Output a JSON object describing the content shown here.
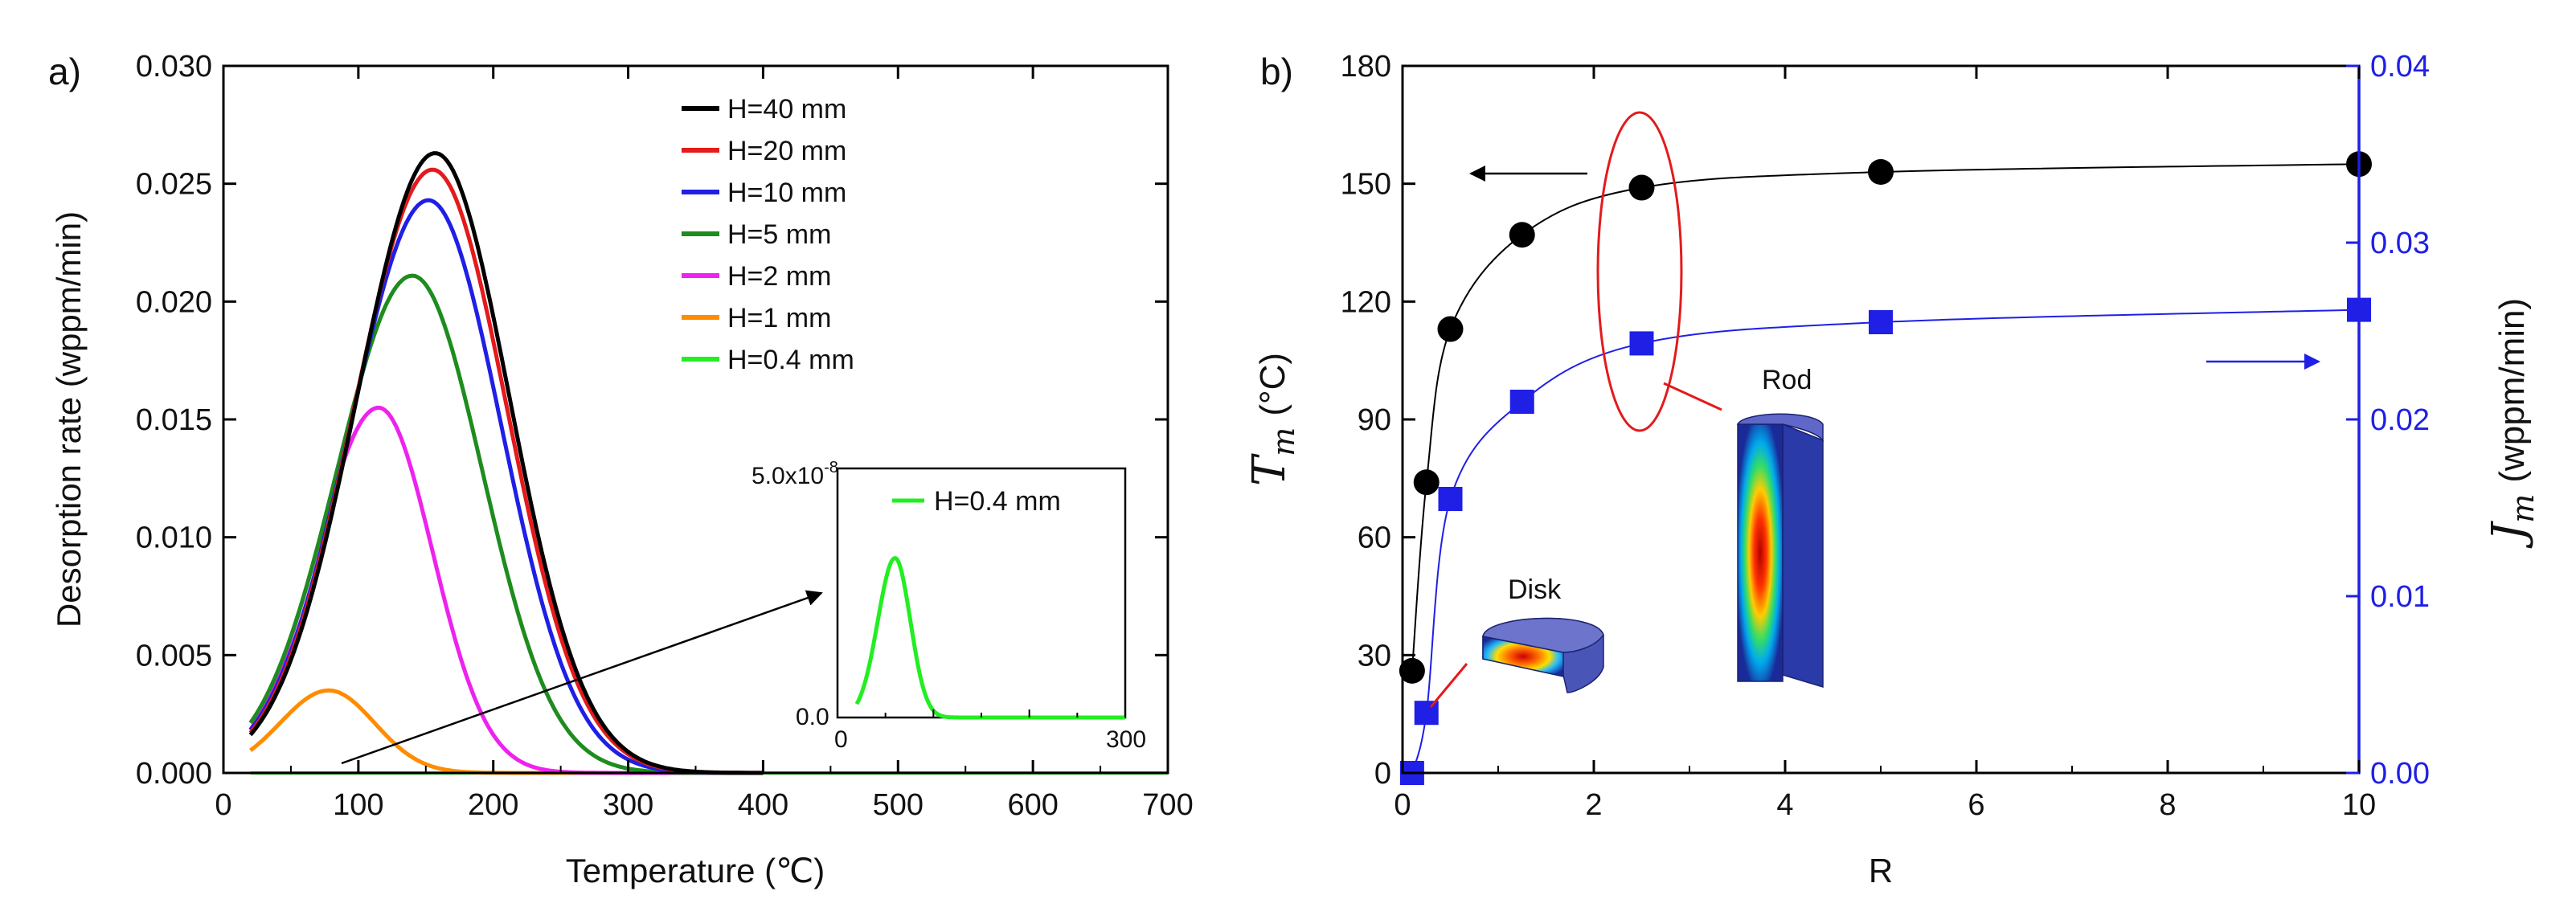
{
  "panels": {
    "a": {
      "label": "a)"
    },
    "b": {
      "label": "b)"
    }
  },
  "chart_data": [
    {
      "type": "line",
      "panel": "a",
      "xlabel": "Temperature (℃)",
      "ylabel": "Desorption rate (wppm/min)",
      "xlim": [
        0,
        700
      ],
      "ylim": [
        0,
        0.03
      ],
      "xticks": [
        "0",
        "100",
        "200",
        "300",
        "400",
        "500",
        "600",
        "700"
      ],
      "yticks": [
        "0.000",
        "0.005",
        "0.010",
        "0.015",
        "0.020",
        "0.025",
        "0.030"
      ],
      "series": [
        {
          "name": "H=40 mm",
          "color": "#000000",
          "peak_x": 157,
          "peak_y": 0.0263,
          "sigma_left": 58,
          "sigma_right": 55
        },
        {
          "name": "H=20 mm",
          "color": "#e41a1c",
          "peak_x": 155,
          "peak_y": 0.0256,
          "sigma_left": 58,
          "sigma_right": 55
        },
        {
          "name": "H=10 mm",
          "color": "#1f1fe6",
          "peak_x": 152,
          "peak_y": 0.0243,
          "sigma_left": 58,
          "sigma_right": 54
        },
        {
          "name": "H=5 mm",
          "color": "#1e8c1e",
          "peak_x": 140,
          "peak_y": 0.0211,
          "sigma_left": 56,
          "sigma_right": 52
        },
        {
          "name": "H=2 mm",
          "color": "#ee22ee",
          "peak_x": 115,
          "peak_y": 0.0155,
          "sigma_left": 46,
          "sigma_right": 40
        },
        {
          "name": "H=1 mm",
          "color": "#ff8c00",
          "peak_x": 78,
          "peak_y": 0.0035,
          "sigma_left": 36,
          "sigma_right": 34
        },
        {
          "name": "H=0.4 mm",
          "color": "#22ee22",
          "peak_x": 60,
          "peak_y": 0.0,
          "sigma_left": 20,
          "sigma_right": 20
        }
      ],
      "inset": {
        "ytop_label": "5.0x10",
        "ytop_exponent": "-8",
        "ybottom_label": "0.0",
        "xleft_label": "0",
        "xright_label": "300",
        "xlim": [
          0,
          300
        ],
        "ylim": [
          0,
          5e-08
        ],
        "series": {
          "name": "H=0.4 mm",
          "color": "#22ee22",
          "peak_x": 60,
          "peak_y": 3.2e-08,
          "sigma_left": 18,
          "sigma_right": 16
        }
      }
    },
    {
      "type": "scatter",
      "panel": "b",
      "xlabel": "R",
      "ylabel_left": "m",
      "ylabel_left_symbol": "T",
      "ylabel_left_unit": "(°C)",
      "ylabel_right": "m",
      "ylabel_right_symbol": "J",
      "ylabel_right_unit": "(wppm/min)",
      "xlim": [
        0,
        10
      ],
      "ylim_left": [
        0,
        180
      ],
      "ylim_right": [
        0,
        0.04
      ],
      "xticks": [
        "0",
        "2",
        "4",
        "6",
        "8",
        "10"
      ],
      "yticks_left": [
        "0",
        "30",
        "60",
        "90",
        "120",
        "150",
        "180"
      ],
      "yticks_right": [
        "0.00",
        "0.01",
        "0.02",
        "0.03",
        "0.04"
      ],
      "series": [
        {
          "name": "Tm",
          "axis": "left",
          "color": "#000000",
          "marker": "circle",
          "x": [
            0.1,
            0.25,
            0.5,
            1.25,
            2.5,
            5,
            10
          ],
          "y": [
            26,
            74,
            113,
            137,
            149,
            153,
            155
          ]
        },
        {
          "name": "Jm",
          "axis": "right",
          "color": "#1f1fe6",
          "marker": "square",
          "x": [
            0.1,
            0.25,
            0.5,
            1.25,
            2.5,
            5,
            10
          ],
          "y": [
            0.0,
            0.0034,
            0.0155,
            0.021,
            0.0243,
            0.0255,
            0.0262
          ]
        }
      ],
      "annotations": {
        "rod": "Rod",
        "disk": "Disk"
      }
    }
  ]
}
